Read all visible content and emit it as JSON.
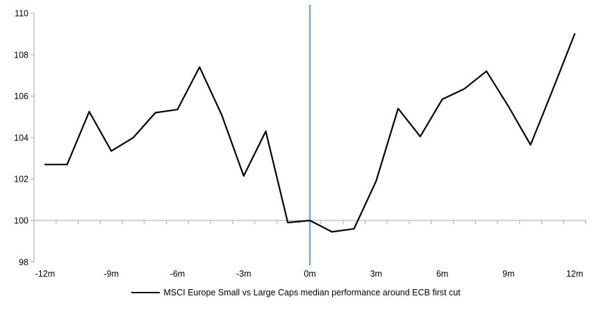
{
  "chart_data": {
    "type": "line",
    "x": [
      -12,
      -11,
      -10,
      -9,
      -8,
      -7,
      -6,
      -5,
      -4,
      -3,
      -2,
      -1,
      0,
      1,
      2,
      3,
      4,
      5,
      6,
      7,
      8,
      9,
      10,
      11,
      12
    ],
    "series": [
      {
        "name": "MSCI Europe Small vs Large Caps median performance around ECB first cut",
        "color": "#000000",
        "values": [
          102.7,
          102.7,
          105.25,
          103.35,
          104.0,
          105.2,
          105.35,
          107.4,
          105.1,
          102.15,
          104.3,
          99.9,
          100.0,
          99.45,
          99.6,
          101.9,
          105.4,
          104.05,
          105.85,
          106.35,
          107.2,
          105.5,
          103.65,
          106.3,
          109.0
        ]
      }
    ],
    "title": "",
    "xlabel": "",
    "ylabel": "",
    "xlim": [
      -12.5,
      12.5
    ],
    "ylim": [
      98,
      110
    ],
    "y_ticks": [
      98,
      100,
      102,
      104,
      106,
      108,
      110
    ],
    "x_tick_labels": [
      {
        "label": "-12m",
        "pos": -12
      },
      {
        "label": "-9m",
        "pos": -9
      },
      {
        "label": "-6m",
        "pos": -6
      },
      {
        "label": "-3m",
        "pos": -3
      },
      {
        "label": "0m",
        "pos": 0
      },
      {
        "label": "3m",
        "pos": 3
      },
      {
        "label": "6m",
        "pos": 6
      },
      {
        "label": "9m",
        "pos": 9
      },
      {
        "label": "12m",
        "pos": 12
      }
    ],
    "minor_x_ticks_every_month": true,
    "baseline_value": 100,
    "event_line": {
      "x": 0,
      "color": "#7da4d3"
    },
    "axis_color": "#a6a6a6",
    "label_color": "#000000",
    "grid": "off",
    "legend_position": "bottom-center"
  }
}
